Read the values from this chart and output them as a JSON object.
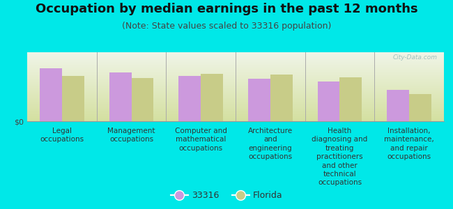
{
  "title": "Occupation by median earnings in the past 12 months",
  "subtitle": "(Note: State values scaled to 33316 population)",
  "background_color": "#00e8e8",
  "plot_bg_bottom": "#d4e0a0",
  "plot_bg_top": "#f0f5e8",
  "categories": [
    "Legal\noccupations",
    "Management\noccupations",
    "Computer and\nmathematical\noccupations",
    "Architecture\nand\nengineering\noccupations",
    "Health\ndiagnosing and\ntreating\npractitioners\nand other\ntechnical\noccupations",
    "Installation,\nmaintenance,\nand repair\noccupations"
  ],
  "values_33316": [
    0.85,
    0.78,
    0.72,
    0.68,
    0.63,
    0.5
  ],
  "values_florida": [
    0.72,
    0.69,
    0.76,
    0.74,
    0.7,
    0.43
  ],
  "color_33316": "#cc99dd",
  "color_florida": "#c8cc88",
  "legend_33316": "33316",
  "legend_florida": "Florida",
  "watermark": "City-Data.com",
  "title_fontsize": 13,
  "subtitle_fontsize": 9,
  "tick_fontsize": 8,
  "cat_fontsize": 7.5,
  "legend_fontsize": 9
}
